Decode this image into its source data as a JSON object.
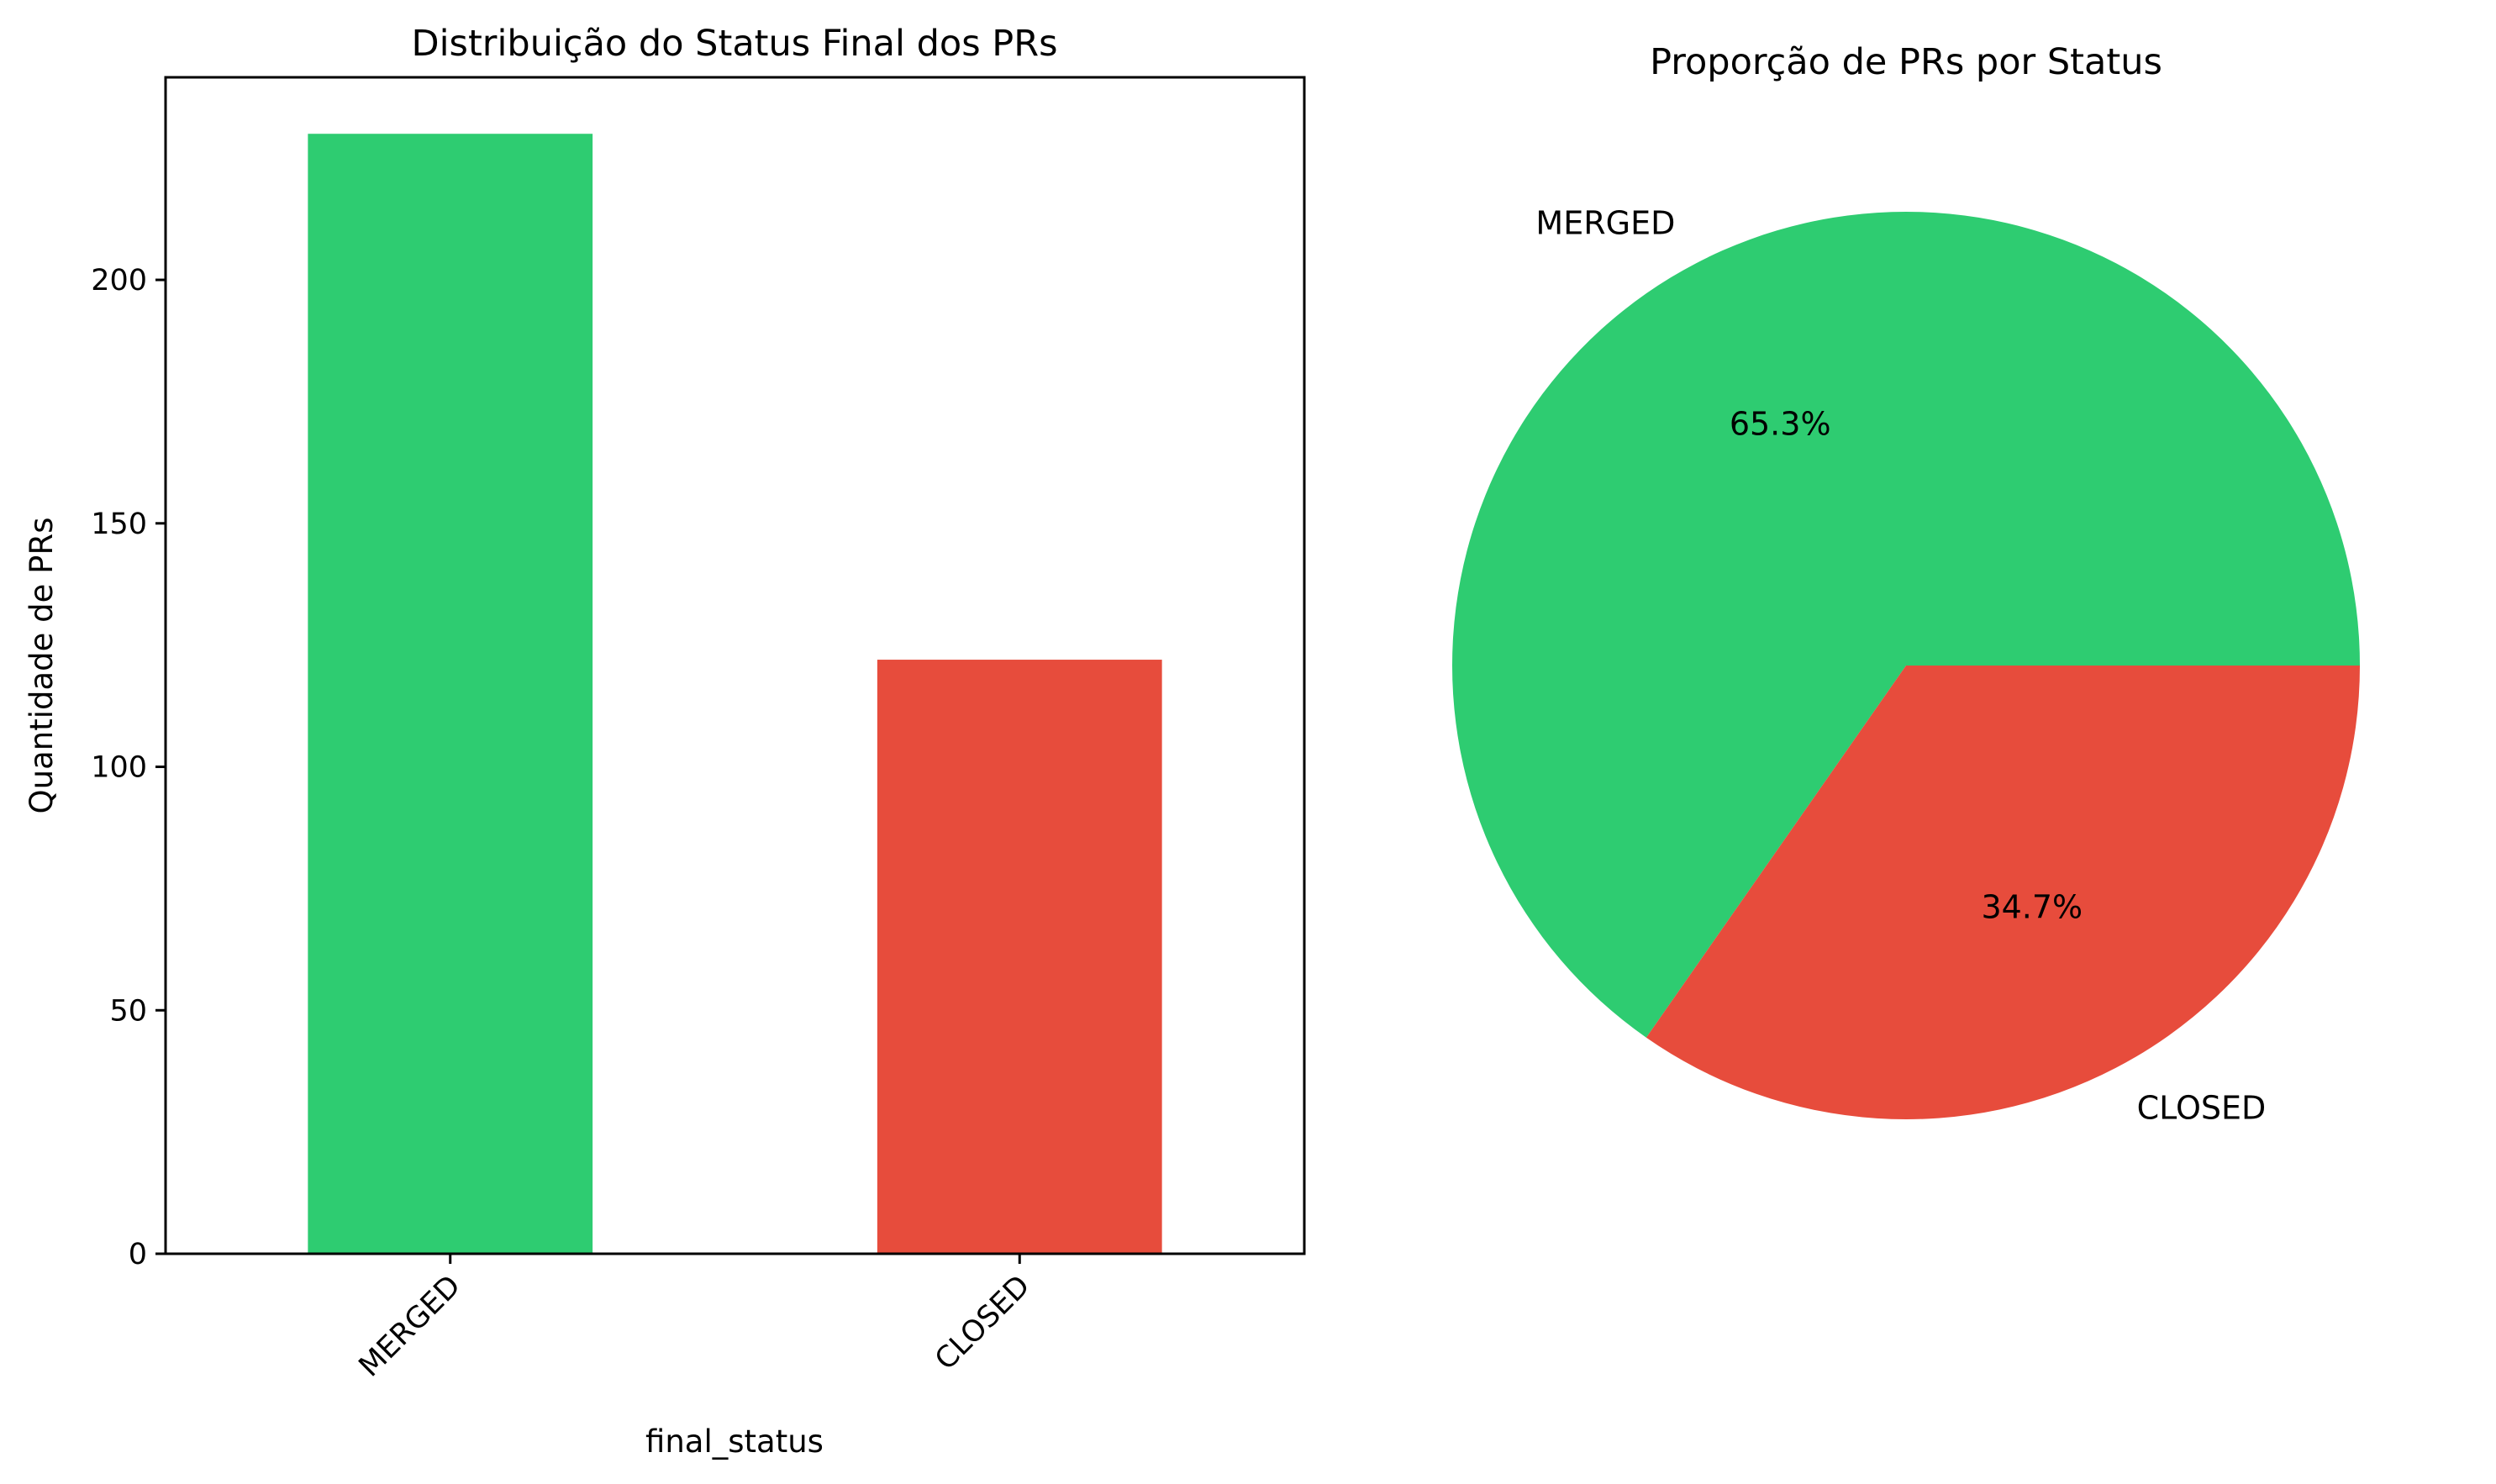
{
  "chart_data": [
    {
      "type": "bar",
      "title": "Distribuição do Status Final dos PRs",
      "xlabel": "final_status",
      "ylabel": "Quantidade de PRs",
      "categories": [
        "MERGED",
        "CLOSED"
      ],
      "values": [
        230,
        122
      ],
      "colors": [
        "#2ecc71",
        "#e74c3c"
      ],
      "ylim": [
        0,
        241.6
      ],
      "yticks": [
        0,
        50,
        100,
        150,
        200
      ],
      "grid": false,
      "legend": "none"
    },
    {
      "type": "pie",
      "title": "Proporção de PRs por Status",
      "labels": [
        "MERGED",
        "CLOSED"
      ],
      "values": [
        65.3,
        34.7
      ],
      "percent_labels": [
        "65.3%",
        "34.7%"
      ],
      "colors": [
        "#2ecc71",
        "#e74c3c"
      ],
      "legend": "none"
    }
  ]
}
